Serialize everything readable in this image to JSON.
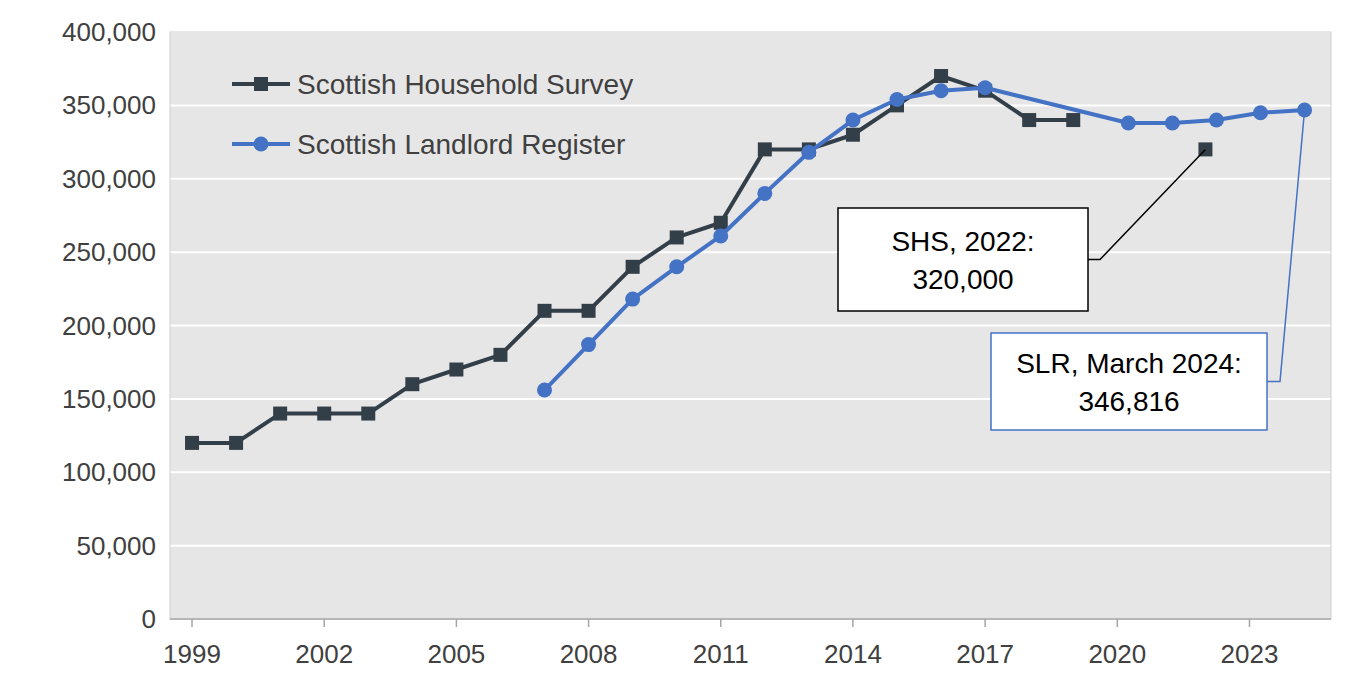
{
  "chart_data": {
    "type": "line",
    "xlim": [
      1998.5,
      2024.85
    ],
    "xticks": [
      1999,
      2002,
      2005,
      2008,
      2011,
      2014,
      2017,
      2020,
      2023
    ],
    "ylim": [
      0,
      400000
    ],
    "yticks": [
      {
        "value": 0,
        "label": "0"
      },
      {
        "value": 50000,
        "label": "50,000"
      },
      {
        "value": 100000,
        "label": "100,000"
      },
      {
        "value": 150000,
        "label": "150,000"
      },
      {
        "value": 200000,
        "label": "200,000"
      },
      {
        "value": 250000,
        "label": "250,000"
      },
      {
        "value": 300000,
        "label": "300,000"
      },
      {
        "value": 350000,
        "label": "350,000"
      },
      {
        "value": 400000,
        "label": "400,000"
      }
    ],
    "grid": true,
    "legend": "upper left",
    "series": [
      {
        "name": "Scottish Household Survey",
        "color": "#333f48",
        "marker": "square",
        "x": [
          1999,
          2000,
          2001,
          2002,
          2003,
          2004,
          2005,
          2006,
          2007,
          2008,
          2009,
          2010,
          2011,
          2012,
          2013,
          2014,
          2015,
          2016,
          2017,
          2018,
          2019,
          2020,
          2021,
          2022
        ],
        "values": [
          120000,
          120000,
          140000,
          140000,
          140000,
          160000,
          170000,
          180000,
          210000,
          210000,
          240000,
          260000,
          270000,
          320000,
          320000,
          330000,
          350000,
          370000,
          360000,
          340000,
          340000,
          null,
          null,
          320000
        ]
      },
      {
        "name": "Scottish Landlord Register",
        "color": "#4472c4",
        "marker": "circle",
        "x": [
          2007,
          2008,
          2009,
          2010,
          2011,
          2012,
          2013,
          2014,
          2015,
          2016,
          2017,
          2020.25,
          2021.25,
          2022.25,
          2023.25,
          2024.25
        ],
        "values": [
          156000,
          187000,
          218000,
          240000,
          261000,
          290000,
          318000,
          340000,
          354000,
          360000,
          362000,
          338000,
          338000,
          340000,
          345000,
          346816
        ]
      }
    ],
    "annotations": [
      {
        "text": [
          "SHS, 2022:",
          "320,000"
        ],
        "x": 2022,
        "y": 320000,
        "color": "#000000"
      },
      {
        "text": [
          "SLR, March 2024:",
          "346,816"
        ],
        "x": 2024.25,
        "y": 346816,
        "color": "#4472c4"
      }
    ]
  }
}
